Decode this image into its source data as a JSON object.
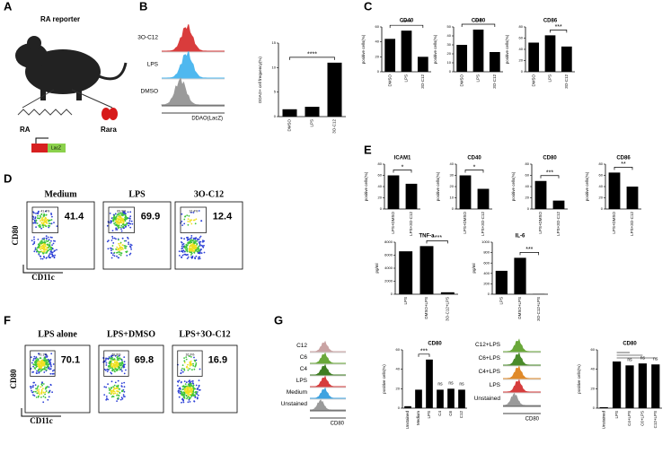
{
  "panel_labels": [
    "A",
    "B",
    "C",
    "D",
    "E",
    "F",
    "G"
  ],
  "panel_a": {
    "title": "RA reporter",
    "ligand": "RA",
    "receptor": "Rara",
    "gene": "LacZ"
  },
  "panel_b_histograms": {
    "labels": [
      "3O-C12",
      "LPS",
      "DMSO"
    ],
    "xlabel": "DDAO(LacZ)"
  },
  "panel_d": {
    "ylabel": "CD80",
    "xlabel": "CD11c",
    "plots": [
      {
        "title": "Medium",
        "value": 41.4,
        "gate_label": "41.4%"
      },
      {
        "title": "LPS",
        "value": 69.9,
        "gate_label": "69.9%"
      },
      {
        "title": "3O-C12",
        "value": 12.4,
        "gate_label": "12.4%"
      }
    ]
  },
  "panel_f": {
    "ylabel": "CD80",
    "xlabel": "CD11c",
    "plots": [
      {
        "title": "LPS alone",
        "value": 70.1,
        "gate_label": "70.1%"
      },
      {
        "title": "LPS+DMSO",
        "value": 69.8,
        "gate_label": "69.8%"
      },
      {
        "title": "LPS+3O-C12",
        "value": 16.9,
        "gate_label": "16.9%"
      }
    ]
  },
  "panel_g_histograms": [
    {
      "labels": [
        "C12",
        "C6",
        "C4",
        "LPS",
        "Medium",
        "Unstained"
      ],
      "xlabel": "CD80"
    },
    {
      "labels": [
        "C12+LPS",
        "C6+LPS",
        "C4+LPS",
        "LPS",
        "Unstained"
      ],
      "xlabel": "CD80"
    }
  ],
  "chart_data": [
    {
      "type": "bar",
      "ylabel": "DDAO+ cell frequency(%)",
      "categories": [
        "DMSO",
        "LPS",
        "3O-C12"
      ],
      "values": [
        1.5,
        2,
        11
      ],
      "color": "#000000",
      "ylim": [
        0,
        15
      ],
      "yticks": [
        0,
        5,
        10,
        15
      ],
      "sig": "****"
    },
    {
      "type": "bar",
      "title": "CD40",
      "ylabel": "positive cells(%)",
      "categories": [
        "DMSO",
        "LPS",
        "3O-C12"
      ],
      "values": [
        44,
        55,
        20
      ],
      "color": "#000000",
      "ylim": [
        0,
        60
      ],
      "yticks": [
        0,
        20,
        40,
        60
      ],
      "sig": "****"
    },
    {
      "type": "bar",
      "title": "CD80",
      "ylabel": "positive cells(%)",
      "categories": [
        "DMSO",
        "LPS",
        "3O-C12"
      ],
      "values": [
        30,
        47,
        22
      ],
      "color": "#000000",
      "ylim": [
        0,
        50
      ],
      "yticks": [
        0,
        10,
        20,
        30,
        40,
        50
      ],
      "sig": "***"
    },
    {
      "type": "bar",
      "title": "CD86",
      "ylabel": "positive cells(%)",
      "categories": [
        "DMSO",
        "LPS",
        "3O-C12"
      ],
      "values": [
        52,
        65,
        45
      ],
      "color": "#000000",
      "ylim": [
        0,
        80
      ],
      "yticks": [
        0,
        20,
        40,
        60,
        80
      ],
      "sig": "***"
    },
    {
      "type": "bar",
      "title": "ICAM1",
      "ylabel": "positive cells(%)",
      "categories": [
        "LPS+DMSO",
        "LPS+3O-C12"
      ],
      "values": [
        60,
        45
      ],
      "color": "#000000",
      "ylim": [
        0,
        80
      ],
      "yticks": [
        0,
        20,
        40,
        60,
        80
      ],
      "sig": "*"
    },
    {
      "type": "bar",
      "title": "CD40",
      "ylabel": "positive cells(%)",
      "categories": [
        "LPS+DMSO",
        "LPS+3O-C12"
      ],
      "values": [
        30,
        18
      ],
      "color": "#000000",
      "ylim": [
        0,
        40
      ],
      "yticks": [
        0,
        10,
        20,
        30,
        40
      ],
      "sig": "*"
    },
    {
      "type": "bar",
      "title": "CD80",
      "ylabel": "positive cells(%)",
      "categories": [
        "LPS+DMSO",
        "LPS+3O-C12"
      ],
      "values": [
        50,
        15
      ],
      "color": "#000000",
      "ylim": [
        0,
        80
      ],
      "yticks": [
        0,
        20,
        40,
        60,
        80
      ],
      "sig": "***"
    },
    {
      "type": "bar",
      "title": "CD86",
      "ylabel": "positive cells(%)",
      "categories": [
        "LPS+DMSO",
        "LPS+3O-C12"
      ],
      "values": [
        65,
        40
      ],
      "color": "#000000",
      "ylim": [
        0,
        80
      ],
      "yticks": [
        0,
        20,
        40,
        60,
        80
      ],
      "sig": "**"
    },
    {
      "type": "bar",
      "title": "TNF-a",
      "ylabel": "pg/ml",
      "categories": [
        "LPS",
        "DMSO+LPS",
        "3O-C12+LPS"
      ],
      "values": [
        6600,
        7400,
        300
      ],
      "color": "#000000",
      "ylim": [
        0,
        8000
      ],
      "yticks": [
        0,
        2000,
        4000,
        6000,
        8000
      ],
      "sig": "****"
    },
    {
      "type": "bar",
      "title": "IL-6",
      "ylabel": "pg/ml",
      "categories": [
        "LPS",
        "DMSO+LPS",
        "3O-C12+LPS"
      ],
      "values": [
        450,
        700,
        5
      ],
      "color": "#000000",
      "ylim": [
        0,
        1000
      ],
      "yticks": [
        0,
        200,
        400,
        600,
        800,
        1000
      ],
      "sig": "***"
    },
    {
      "type": "bar",
      "title": "CD80",
      "ylabel": "positive cells(%)",
      "categories": [
        "Unstained",
        "Medium",
        "LPS",
        "C4",
        "C6",
        "C12"
      ],
      "values": [
        2,
        19,
        50,
        19,
        20,
        19
      ],
      "color": "#000000",
      "ylim": [
        0,
        60
      ],
      "yticks": [
        0,
        20,
        40,
        60
      ],
      "sig": "***",
      "annotations": [
        "ns",
        "ns",
        "ns"
      ]
    },
    {
      "type": "bar",
      "title": "CD80",
      "ylabel": "positive cells(%)",
      "categories": [
        "Unstained",
        "LPS",
        "C4+LPS",
        "C6+LPS",
        "C12+LPS"
      ],
      "values": [
        1,
        48,
        44,
        46,
        45
      ],
      "color": "#000000",
      "ylim": [
        0,
        60
      ],
      "yticks": [
        0,
        20,
        40,
        60
      ],
      "sig": "",
      "annotations": [
        "ns",
        "ns",
        "ns"
      ]
    }
  ]
}
